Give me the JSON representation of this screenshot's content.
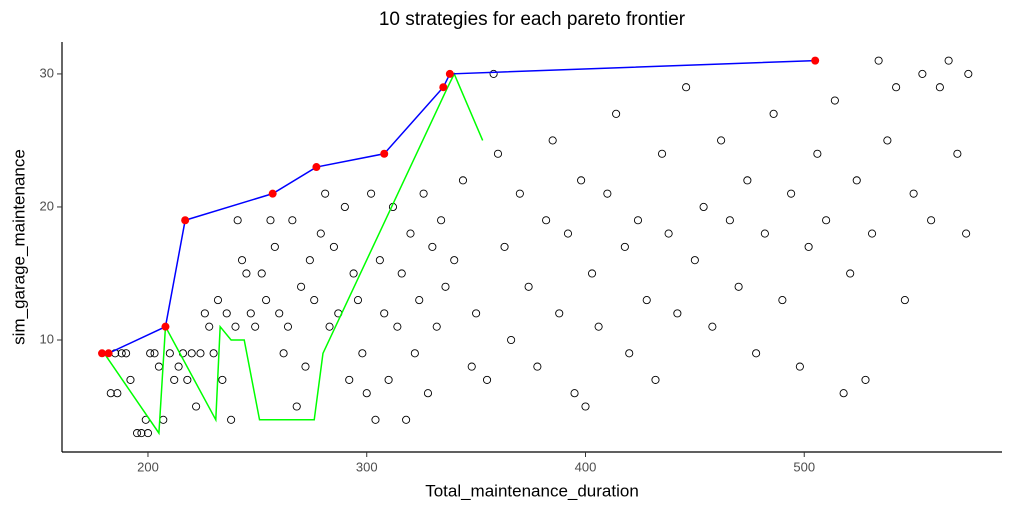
{
  "chart_data": {
    "type": "scatter",
    "title": "10  strategies for each pareto frontier",
    "x_label": "Total_maintenance_duration",
    "y_label": "sim_garage_maintenance",
    "xlim": [
      160.7,
      590.4
    ],
    "ylim": [
      1.58,
      32.4
    ],
    "xticks": [
      200,
      300,
      400,
      500
    ],
    "yticks": [
      10,
      20,
      30
    ],
    "grid": false,
    "series": [
      {
        "mode": "markers",
        "color": "#000000",
        "x": [
          183,
          186,
          185,
          188,
          190,
          192,
          195,
          197,
          199,
          200,
          201,
          203,
          205,
          207,
          210,
          212,
          214,
          216,
          218,
          220,
          222,
          224,
          226,
          228,
          230,
          232,
          234,
          236,
          238,
          240,
          241,
          243,
          245,
          247,
          249,
          252,
          254,
          256,
          258,
          260,
          262,
          264,
          266,
          268,
          270,
          272,
          274,
          276,
          279,
          281,
          283,
          285,
          287,
          290,
          292,
          294,
          296,
          298,
          300,
          302,
          304,
          306,
          308,
          310,
          312,
          314,
          316,
          318,
          320,
          322,
          324,
          326,
          328,
          330,
          332,
          334,
          336,
          340,
          344,
          348,
          350,
          355,
          358,
          360,
          363,
          366,
          370,
          374,
          378,
          382,
          385,
          388,
          392,
          395,
          398,
          400,
          403,
          406,
          410,
          414,
          418,
          420,
          424,
          428,
          432,
          435,
          438,
          442,
          446,
          450,
          454,
          458,
          462,
          466,
          470,
          474,
          478,
          482,
          486,
          490,
          494,
          498,
          502,
          506,
          510,
          514,
          518,
          521,
          524,
          528,
          531,
          534,
          538,
          542,
          546,
          550,
          554,
          558,
          562,
          566,
          570,
          574,
          575
        ],
        "values": [
          6,
          6,
          9,
          9,
          9,
          7,
          3,
          3,
          4,
          3,
          9,
          9,
          8,
          4,
          9,
          7,
          8,
          9,
          7,
          9,
          5,
          9,
          12,
          11,
          9,
          13,
          7,
          12,
          4,
          11,
          19,
          16,
          15,
          12,
          11,
          15,
          13,
          19,
          17,
          12,
          9,
          11,
          19,
          5,
          14,
          8,
          16,
          13,
          18,
          21,
          11,
          17,
          12,
          20,
          7,
          15,
          13,
          9,
          6,
          21,
          4,
          16,
          12,
          7,
          20,
          11,
          15,
          4,
          18,
          9,
          13,
          21,
          6,
          17,
          11,
          19,
          14,
          16,
          22,
          8,
          12,
          7,
          30,
          24,
          17,
          10,
          21,
          14,
          8,
          19,
          25,
          12,
          18,
          6,
          22,
          5,
          15,
          11,
          21,
          27,
          17,
          9,
          19,
          13,
          7,
          24,
          18,
          12,
          29,
          16,
          20,
          11,
          25,
          19,
          14,
          22,
          9,
          18,
          27,
          13,
          21,
          8,
          17,
          24,
          19,
          28,
          6,
          15,
          22,
          7,
          18,
          31,
          25,
          29,
          13,
          21,
          30,
          19,
          29,
          31,
          24,
          18,
          30
        ]
      },
      {
        "mode": "lines",
        "color": "#00ff00",
        "x": [
          180,
          205,
          208,
          231,
          233,
          238,
          244,
          251,
          260,
          276,
          280,
          337,
          340,
          353
        ],
        "values": [
          9,
          3,
          11,
          4,
          11,
          10,
          10,
          4,
          4,
          4,
          9,
          29,
          30,
          25
        ]
      },
      {
        "mode": "lines+markers",
        "color": "#0000ff",
        "marker_color": "#ff0000",
        "x": [
          179,
          182,
          208,
          217,
          257,
          277,
          308,
          335,
          338,
          505
        ],
        "values": [
          9,
          9,
          11,
          19,
          21,
          23,
          24,
          29,
          30,
          31
        ]
      }
    ]
  }
}
